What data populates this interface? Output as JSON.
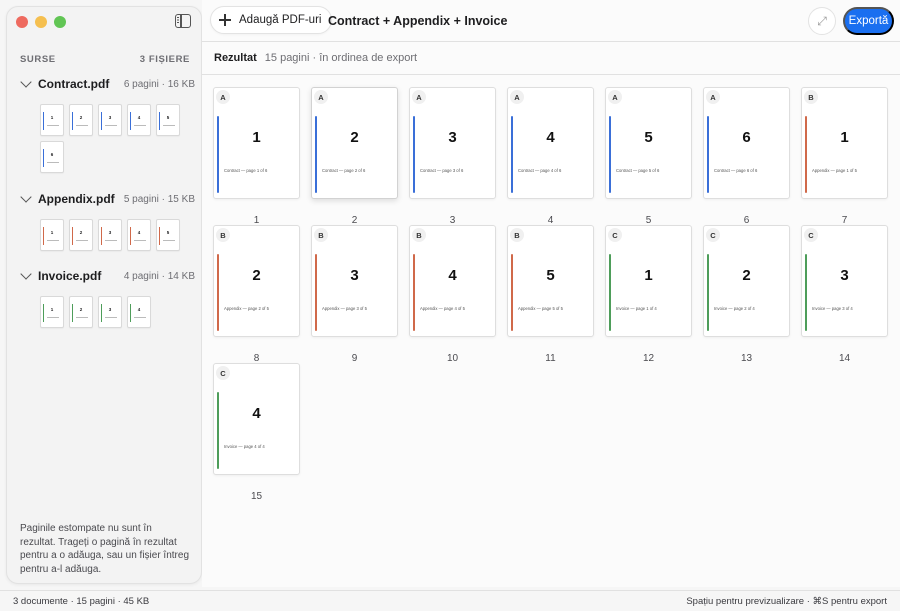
{
  "colors": {
    "A": "#3a6fd8",
    "B": "#d0694a",
    "C": "#4e9d5a",
    "accent": "#1a6ff0"
  },
  "sidebar": {
    "sources_label": "SURSE",
    "files_count": "3 FIȘIERE",
    "files": [
      {
        "name": "Contract.pdf",
        "meta": "6 pagini · 16 KB",
        "tag": "A",
        "pages": [
          "1",
          "2",
          "3",
          "4",
          "5",
          "6"
        ]
      },
      {
        "name": "Appendix.pdf",
        "meta": "5 pagini · 15 KB",
        "tag": "B",
        "pages": [
          "1",
          "2",
          "3",
          "4",
          "5"
        ]
      },
      {
        "name": "Invoice.pdf",
        "meta": "4 pagini · 14 KB",
        "tag": "C",
        "pages": [
          "1",
          "2",
          "3",
          "4"
        ]
      }
    ],
    "hint": "Paginile estompate nu sunt în rezultat. Trageți o pagină în rezultat pentru a o adăuga, sau un fișier întreg pentru a-l adăuga."
  },
  "toolbar": {
    "add_label": "Adaugă PDF-uri",
    "title": "Contract + Appendix + Invoice",
    "export_label": "Exportă"
  },
  "result": {
    "label": "Rezultat",
    "info": "15 pagini · în ordinea de export"
  },
  "pages": [
    {
      "tag": "A",
      "num": "1",
      "caption": "Contract — page 1 of 6",
      "index": "1"
    },
    {
      "tag": "A",
      "num": "2",
      "caption": "Contract — page 2 of 6",
      "index": "2"
    },
    {
      "tag": "A",
      "num": "3",
      "caption": "Contract — page 3 of 6",
      "index": "3"
    },
    {
      "tag": "A",
      "num": "4",
      "caption": "Contract — page 4 of 6",
      "index": "4"
    },
    {
      "tag": "A",
      "num": "5",
      "caption": "Contract — page 5 of 6",
      "index": "5"
    },
    {
      "tag": "A",
      "num": "6",
      "caption": "Contract — page 6 of 6",
      "index": "6"
    },
    {
      "tag": "B",
      "num": "1",
      "caption": "Appendix — page 1 of 5",
      "index": "7"
    },
    {
      "tag": "B",
      "num": "2",
      "caption": "Appendix — page 2 of 5",
      "index": "8"
    },
    {
      "tag": "B",
      "num": "3",
      "caption": "Appendix — page 3 of 5",
      "index": "9"
    },
    {
      "tag": "B",
      "num": "4",
      "caption": "Appendix — page 4 of 5",
      "index": "10"
    },
    {
      "tag": "B",
      "num": "5",
      "caption": "Appendix — page 5 of 5",
      "index": "11"
    },
    {
      "tag": "C",
      "num": "1",
      "caption": "Invoice — page 1 of 4",
      "index": "12"
    },
    {
      "tag": "C",
      "num": "2",
      "caption": "Invoice — page 2 of 4",
      "index": "13"
    },
    {
      "tag": "C",
      "num": "3",
      "caption": "Invoice — page 3 of 4",
      "index": "14"
    },
    {
      "tag": "C",
      "num": "4",
      "caption": "Invoice — page 4 of 4",
      "index": "15"
    }
  ],
  "status": {
    "left": "3 documente · 15 pagini · 45 KB",
    "right": "Spațiu pentru previzualizare · ⌘S pentru export"
  }
}
